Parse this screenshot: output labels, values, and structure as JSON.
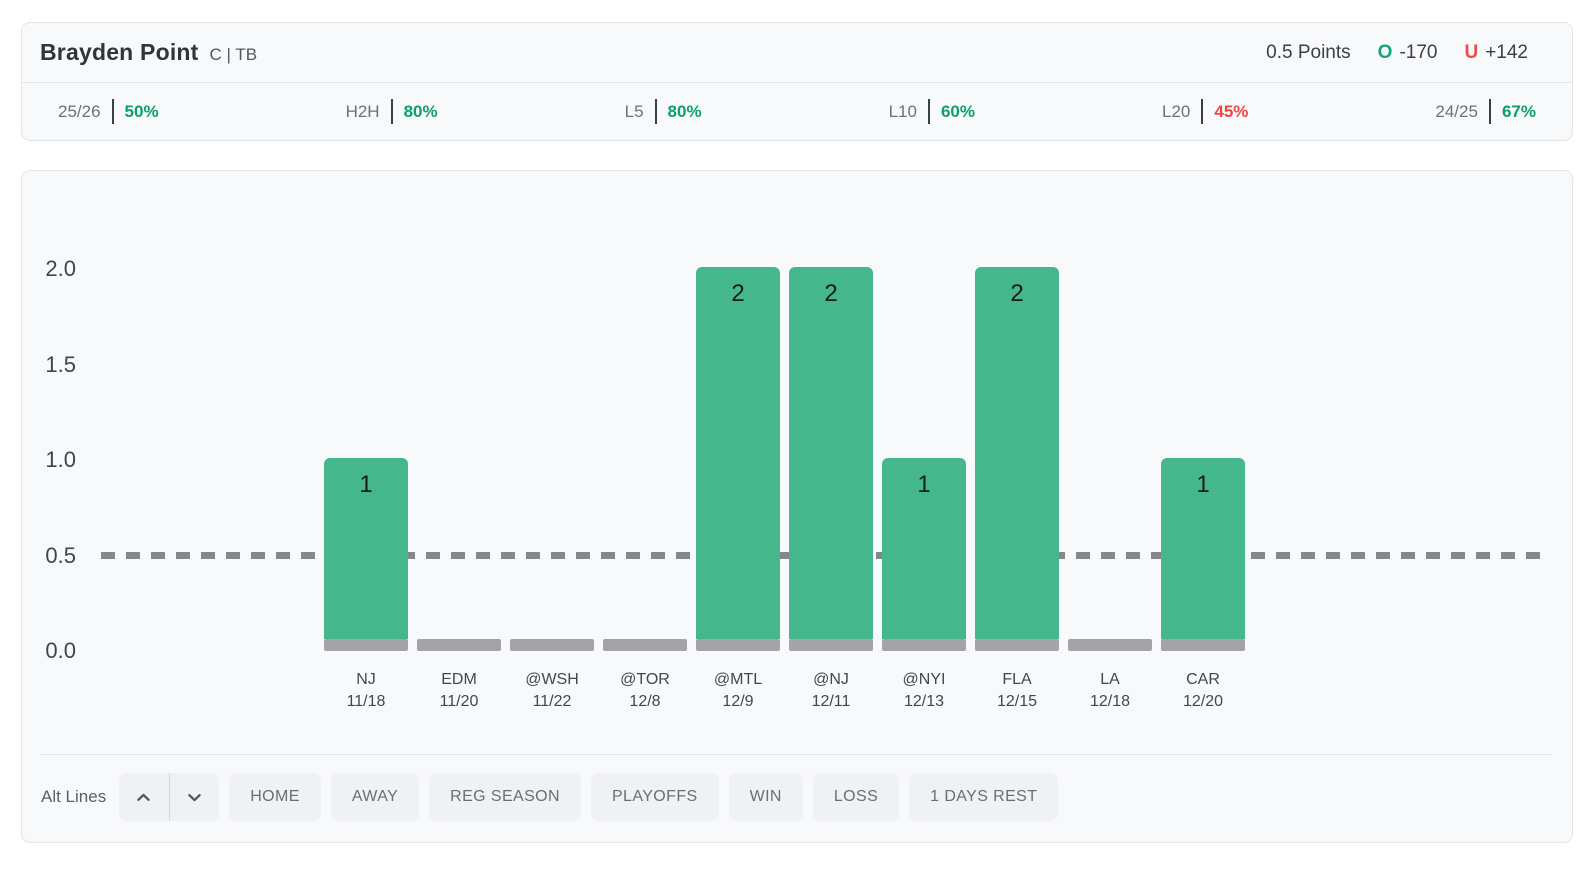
{
  "header": {
    "player_name": "Brayden Point",
    "position": "C | TB",
    "line_label": "0.5 Points",
    "over": {
      "symbol": "O",
      "odds": "-170"
    },
    "under": {
      "symbol": "U",
      "odds": "+142"
    },
    "stats": [
      {
        "label": "25/26",
        "value": "50%",
        "color": "green"
      },
      {
        "label": "H2H",
        "value": "80%",
        "color": "green"
      },
      {
        "label": "L5",
        "value": "80%",
        "color": "green"
      },
      {
        "label": "L10",
        "value": "60%",
        "color": "green"
      },
      {
        "label": "L20",
        "value": "45%",
        "color": "red"
      },
      {
        "label": "24/25",
        "value": "67%",
        "color": "green"
      }
    ]
  },
  "chart_data": {
    "type": "bar",
    "title": "",
    "xlabel": "",
    "ylabel": "",
    "categories": [
      {
        "team": "NJ",
        "date": "11/18"
      },
      {
        "team": "EDM",
        "date": "11/20"
      },
      {
        "team": "@WSH",
        "date": "11/22"
      },
      {
        "team": "@TOR",
        "date": "12/8"
      },
      {
        "team": "@MTL",
        "date": "12/9"
      },
      {
        "team": "@NJ",
        "date": "12/11"
      },
      {
        "team": "@NYI",
        "date": "12/13"
      },
      {
        "team": "FLA",
        "date": "12/15"
      },
      {
        "team": "LA",
        "date": "12/18"
      },
      {
        "team": "CAR",
        "date": "12/20"
      }
    ],
    "values": [
      1,
      0,
      0,
      0,
      2,
      2,
      1,
      2,
      0,
      1
    ],
    "prop_line": 0.5,
    "yticks": [
      2.0,
      1.5,
      1.0,
      0.5,
      0.0
    ],
    "ylim": [
      0,
      2.25
    ],
    "grid": false,
    "legend": "none",
    "bar_color": "#45b78d",
    "zero_bar_color": "#a4a4a7",
    "line_color": "#85878a",
    "line_style": "dashed"
  },
  "toolbar": {
    "alt_lines_label": "Alt Lines",
    "stepper": [
      "chevron-up",
      "chevron-down"
    ],
    "filters": [
      "HOME",
      "AWAY",
      "REG SEASON",
      "PLAYOFFS",
      "WIN",
      "LOSS",
      "1 DAYS REST"
    ]
  },
  "colors": {
    "over_green": "#14a878",
    "under_red": "#ef4a4a",
    "stat_green": "#0c9e6c",
    "stat_red": "#ee4545",
    "card_bg": "#f8f9fb",
    "card_border": "#e3e6e9"
  }
}
